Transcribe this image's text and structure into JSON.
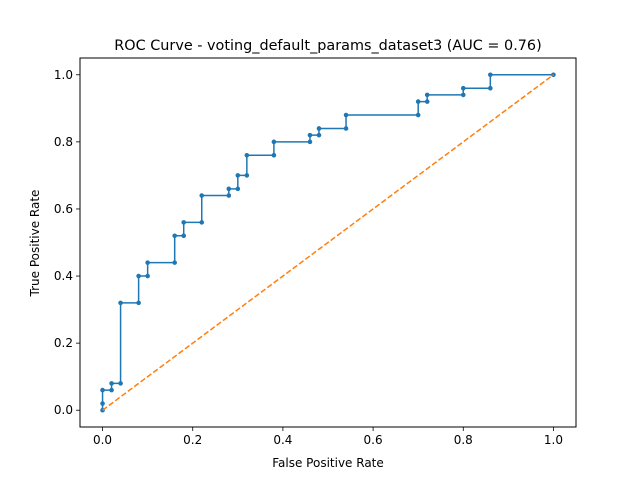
{
  "chart_data": {
    "type": "line",
    "title": "ROC Curve - voting_default_params_dataset3 (AUC = 0.76)",
    "xlabel": "False Positive Rate",
    "ylabel": "True Positive Rate",
    "xlim": [
      -0.05,
      1.05
    ],
    "ylim": [
      -0.05,
      1.05
    ],
    "xticks": [
      0.0,
      0.2,
      0.4,
      0.6,
      0.8,
      1.0
    ],
    "xtick_labels": [
      "0.0",
      "0.2",
      "0.4",
      "0.6",
      "0.8",
      "1.0"
    ],
    "yticks": [
      0.0,
      0.2,
      0.4,
      0.6,
      0.8,
      1.0
    ],
    "ytick_labels": [
      "0.0",
      "0.2",
      "0.4",
      "0.6",
      "0.8",
      "1.0"
    ],
    "grid": false,
    "series": [
      {
        "style": "solid-markers",
        "color": "#1f77b4",
        "x": [
          0.0,
          0.0,
          0.0,
          0.02,
          0.02,
          0.04,
          0.04,
          0.08,
          0.08,
          0.1,
          0.1,
          0.16,
          0.16,
          0.18,
          0.18,
          0.22,
          0.22,
          0.28,
          0.28,
          0.3,
          0.3,
          0.32,
          0.32,
          0.38,
          0.38,
          0.46,
          0.46,
          0.48,
          0.48,
          0.54,
          0.54,
          0.7,
          0.7,
          0.72,
          0.72,
          0.8,
          0.8,
          0.86,
          0.86,
          1.0
        ],
        "y": [
          0.0,
          0.02,
          0.06,
          0.06,
          0.08,
          0.08,
          0.32,
          0.32,
          0.4,
          0.4,
          0.44,
          0.44,
          0.52,
          0.52,
          0.56,
          0.56,
          0.64,
          0.64,
          0.66,
          0.66,
          0.7,
          0.7,
          0.76,
          0.76,
          0.8,
          0.8,
          0.82,
          0.82,
          0.84,
          0.84,
          0.88,
          0.88,
          0.92,
          0.92,
          0.94,
          0.94,
          0.96,
          0.96,
          1.0,
          1.0
        ]
      },
      {
        "style": "dashed",
        "color": "#ff7f0e",
        "x": [
          0.0,
          1.0
        ],
        "y": [
          0.0,
          1.0
        ]
      }
    ]
  }
}
